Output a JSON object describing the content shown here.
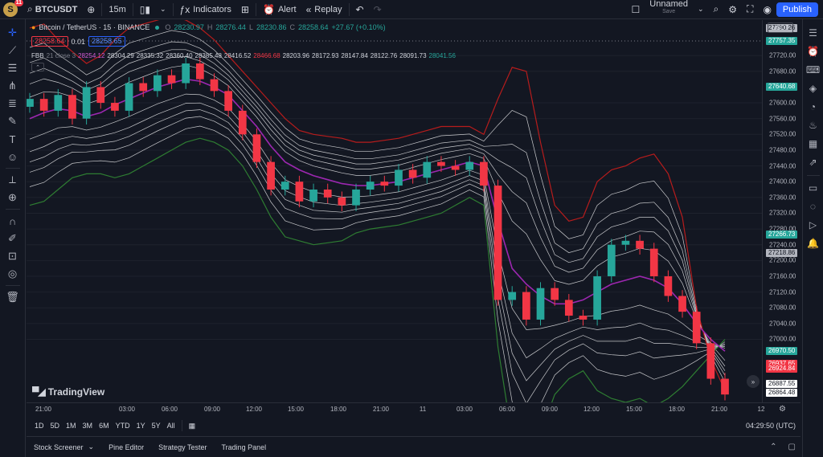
{
  "header": {
    "avatar_letter": "S",
    "avatar_badge": "11",
    "symbol": "BTCUSDT",
    "interval": "15m",
    "indicators_label": "Indicators",
    "alert_label": "Alert",
    "replay_label": "Replay",
    "layout_name": "Unnamed",
    "layout_sub": "Save",
    "publish_label": "Publish"
  },
  "legend": {
    "title": "Bitcoin / TetherUS · 15 · BINANCE",
    "o_label": "O",
    "o": "28230.97",
    "h_label": "H",
    "h": "28276.44",
    "l_label": "L",
    "l": "28230.86",
    "c_label": "C",
    "c": "28258.64",
    "change": "+27.67 (+0.10%)",
    "sell": "28258.64",
    "spread": "0.01",
    "buy": "28258.65"
  },
  "indicator": {
    "name": "FBB",
    "params": "21 close 3",
    "basis": "28254.12",
    "values": [
      "28304.29",
      "28335.32",
      "28360.40",
      "28385.48",
      "28416.52",
      "28466.68",
      "28203.96",
      "28172.93",
      "28147.84",
      "28122.76",
      "28091.73",
      "28041.56"
    ],
    "colors": [
      "#d1d4dc",
      "#d1d4dc",
      "#d1d4dc",
      "#d1d4dc",
      "#d1d4dc",
      "#f23645",
      "#d1d4dc",
      "#d1d4dc",
      "#d1d4dc",
      "#d1d4dc",
      "#d1d4dc",
      "#26a69a"
    ]
  },
  "price_axis": {
    "currency": "USDT",
    "ticks": [
      "27720.00",
      "27680.00",
      "27600.00",
      "27560.00",
      "27520.00",
      "27480.00",
      "27440.00",
      "27400.00",
      "27360.00",
      "27320.00",
      "27280.00",
      "27240.00",
      "27200.00",
      "27160.00",
      "27120.00",
      "27080.00",
      "27040.00",
      "27000.00"
    ],
    "tags": [
      {
        "text": "27790.26",
        "bg": "#b2b5be",
        "fg": "#131722"
      },
      {
        "text": "27757.35",
        "bg": "#26a69a",
        "fg": "#ffffff"
      },
      {
        "text": "27640.68",
        "bg": "#26a69a",
        "fg": "#ffffff"
      },
      {
        "text": "27266.73",
        "bg": "#26a69a",
        "fg": "#ffffff"
      },
      {
        "text": "27218.86",
        "bg": "#b2b5be",
        "fg": "#131722"
      },
      {
        "text": "26970.50",
        "bg": "#26a69a",
        "fg": "#ffffff"
      },
      {
        "text": "26937.65",
        "bg": "#f23645",
        "fg": "#ffffff"
      },
      {
        "text": "26924.84",
        "bg": "#f23645",
        "fg": "#ffffff"
      },
      {
        "text": "26887.55",
        "bg": "#ffffff",
        "fg": "#131722"
      },
      {
        "text": "26864.48",
        "bg": "#ffffff",
        "fg": "#131722"
      }
    ]
  },
  "time_axis": [
    "21:00",
    "03:00",
    "06:00",
    "09:00",
    "12:00",
    "15:00",
    "18:00",
    "21:00",
    "11",
    "03:00",
    "06:00",
    "09:00",
    "12:00",
    "15:00",
    "18:00",
    "21:00",
    "12"
  ],
  "ranges": [
    "1D",
    "5D",
    "1M",
    "3M",
    "6M",
    "YTD",
    "1Y",
    "5Y",
    "All"
  ],
  "clock": "04:29:50 (UTC)",
  "bottom_tabs": [
    "Stock Screener",
    "Pine Editor",
    "Strategy Tester",
    "Trading Panel"
  ],
  "logo_text": "TradingView",
  "colors": {
    "up": "#26a69a",
    "down": "#f23645",
    "basis": "#9c27b0",
    "upper": "#b71c1c",
    "lower": "#2e7d32",
    "inner": "#c8c9cc",
    "grid": "#1e222d"
  },
  "chart_data": {
    "type": "candlestick",
    "symbol": "BTCUSDT",
    "interval": "15",
    "ylim": [
      26840,
      27810
    ],
    "basis": [
      27560,
      27575,
      27585,
      27580,
      27565,
      27575,
      27595,
      27610,
      27625,
      27640,
      27650,
      27660,
      27655,
      27640,
      27620,
      27580,
      27540,
      27490,
      27450,
      27430,
      27415,
      27405,
      27395,
      27390,
      27390,
      27395,
      27400,
      27410,
      27420,
      27430,
      27440,
      27450,
      27440,
      27300,
      27180,
      27140,
      27110,
      27090,
      27090,
      27100,
      27120,
      27140,
      27150,
      27160,
      27150,
      27130,
      27090,
      27040,
      27000,
      26970
    ],
    "bands": {
      "upper_outer": [
        27790,
        27800,
        27760,
        27730,
        27700,
        27720,
        27760,
        27790,
        27800,
        27810,
        27820,
        27810,
        27790,
        27760,
        27720,
        27680,
        27640,
        27600,
        27560,
        27530,
        27520,
        27515,
        27510,
        27500,
        27500,
        27505,
        27510,
        27520,
        27530,
        27540,
        27540,
        27540,
        27520,
        27610,
        27690,
        27680,
        27500,
        27340,
        27300,
        27310,
        27400,
        27430,
        27440,
        27460,
        27470,
        27420,
        27310,
        27080,
        26950,
        26870
      ],
      "lower_outer": [
        27340,
        27350,
        27380,
        27410,
        27420,
        27420,
        27410,
        27420,
        27440,
        27460,
        27480,
        27500,
        27510,
        27500,
        27480,
        27440,
        27380,
        27310,
        27260,
        27250,
        27240,
        27245,
        27250,
        27270,
        27280,
        27285,
        27290,
        27300,
        27310,
        27320,
        27340,
        27360,
        27340,
        26980,
        26750,
        26650,
        26760,
        26860,
        26900,
        26920,
        26870,
        26850,
        26840,
        26850,
        26830,
        26850,
        26880,
        26920,
        26960,
        27000
      ]
    },
    "candles_close": [
      27610,
      27580,
      27620,
      27560,
      27640,
      27600,
      27580,
      27650,
      27630,
      27670,
      27650,
      27700,
      27660,
      27630,
      27580,
      27520,
      27450,
      27380,
      27400,
      27350,
      27380,
      27360,
      27340,
      27380,
      27400,
      27390,
      27430,
      27410,
      27450,
      27440,
      27430,
      27450,
      27390,
      27100,
      27120,
      27050,
      27130,
      27100,
      27060,
      27050,
      27160,
      27240,
      27250,
      27230,
      27160,
      27110,
      27070,
      26990,
      26900,
      26860
    ]
  }
}
